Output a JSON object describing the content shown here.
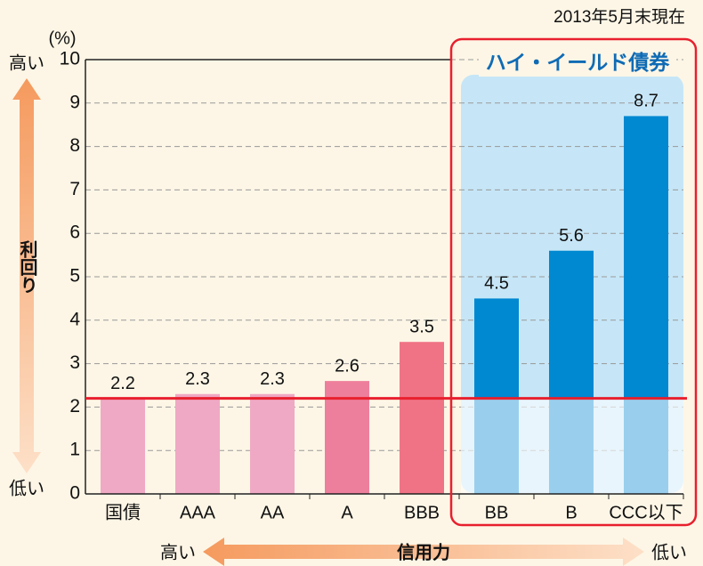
{
  "chart_data": {
    "type": "bar",
    "date": "2013年5月末現在",
    "ylabel": "(%)",
    "y_axis_title": "利回り",
    "y_axis_high": "高い",
    "y_axis_low": "低い",
    "x_axis_title": "信用力",
    "x_axis_high": "高い",
    "x_axis_low": "低い",
    "highlight_label": "ハイ・イールド債券",
    "categories": [
      "国債",
      "AAA",
      "AA",
      "A",
      "BBB",
      "BB",
      "B",
      "CCC以下"
    ],
    "values": [
      2.2,
      2.3,
      2.3,
      2.6,
      3.5,
      4.5,
      5.6,
      8.7
    ],
    "colors": [
      "#efa9c4",
      "#efa9c4",
      "#efa9c4",
      "#ee7f9c",
      "#f07385",
      "#0088d1",
      "#0088d1",
      "#0088d1"
    ],
    "reference_color": "#e8202e",
    "ylim": [
      0,
      10
    ],
    "yticks": [
      0,
      1,
      2,
      3,
      4,
      5,
      6,
      7,
      8,
      9,
      10
    ],
    "grid": true
  }
}
